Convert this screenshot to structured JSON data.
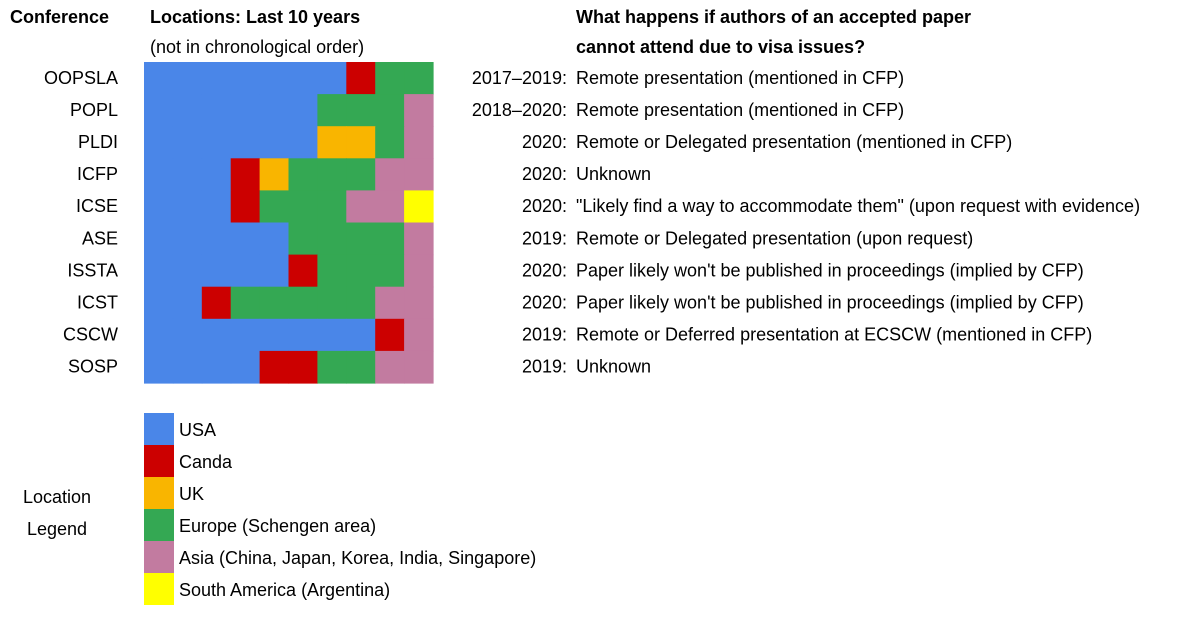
{
  "header": {
    "conference": "Conference",
    "locations": "Locations: Last 10 years",
    "locations_note": "(not in chronological order)",
    "question_1": "What happens if authors of an accepted paper",
    "question_2": "cannot attend due to visa issues?"
  },
  "legend": {
    "title_1": "Location",
    "title_2": "Legend",
    "items": [
      {
        "label": "USA",
        "color": "#4a86e8"
      },
      {
        "label": "Canda",
        "color": "#cc0000"
      },
      {
        "label": "UK",
        "color": "#f9b500"
      },
      {
        "label": "Europe (Schengen area)",
        "color": "#34a853"
      },
      {
        "label": "Asia (China, Japan, Korea, India, Singapore)",
        "color": "#c27ba0"
      },
      {
        "label": "South America (Argentina)",
        "color": "#ffff00"
      }
    ]
  },
  "rows": [
    {
      "conference": "OOPSLA",
      "cells": [
        0,
        0,
        0,
        0,
        0,
        0,
        0,
        1,
        3,
        3
      ],
      "years": "2017–2019:",
      "policy": "Remote presentation (mentioned in CFP)"
    },
    {
      "conference": "POPL",
      "cells": [
        0,
        0,
        0,
        0,
        0,
        0,
        3,
        3,
        3,
        4
      ],
      "years": "2018–2020:",
      "policy": "Remote presentation (mentioned in CFP)"
    },
    {
      "conference": "PLDI",
      "cells": [
        0,
        0,
        0,
        0,
        0,
        0,
        2,
        2,
        3,
        4
      ],
      "years": "2020:",
      "policy": "Remote or Delegated presentation (mentioned in CFP)"
    },
    {
      "conference": "ICFP",
      "cells": [
        0,
        0,
        0,
        1,
        2,
        3,
        3,
        3,
        4,
        4
      ],
      "years": "2020:",
      "policy": "Unknown"
    },
    {
      "conference": "ICSE",
      "cells": [
        0,
        0,
        0,
        1,
        3,
        3,
        3,
        4,
        4,
        5
      ],
      "years": "2020:",
      "policy": "\"Likely find a way to accommodate them\" (upon request with evidence)"
    },
    {
      "conference": "ASE",
      "cells": [
        0,
        0,
        0,
        0,
        0,
        3,
        3,
        3,
        3,
        4
      ],
      "years": "2019:",
      "policy": "Remote or Delegated presentation (upon request)"
    },
    {
      "conference": "ISSTA",
      "cells": [
        0,
        0,
        0,
        0,
        0,
        1,
        3,
        3,
        3,
        4
      ],
      "years": "2020:",
      "policy": "Paper likely won't be published in proceedings (implied by CFP)"
    },
    {
      "conference": "ICST",
      "cells": [
        0,
        0,
        1,
        3,
        3,
        3,
        3,
        3,
        4,
        4
      ],
      "years": "2020:",
      "policy": "Paper likely won't be published in proceedings (implied by CFP)"
    },
    {
      "conference": "CSCW",
      "cells": [
        0,
        0,
        0,
        0,
        0,
        0,
        0,
        0,
        1,
        4
      ],
      "years": "2019:",
      "policy": "Remote or Deferred presentation at ECSCW (mentioned in CFP)"
    },
    {
      "conference": "SOSP",
      "cells": [
        0,
        0,
        0,
        0,
        1,
        1,
        3,
        3,
        4,
        4
      ],
      "years": "2019:",
      "policy": "Unknown"
    }
  ]
}
